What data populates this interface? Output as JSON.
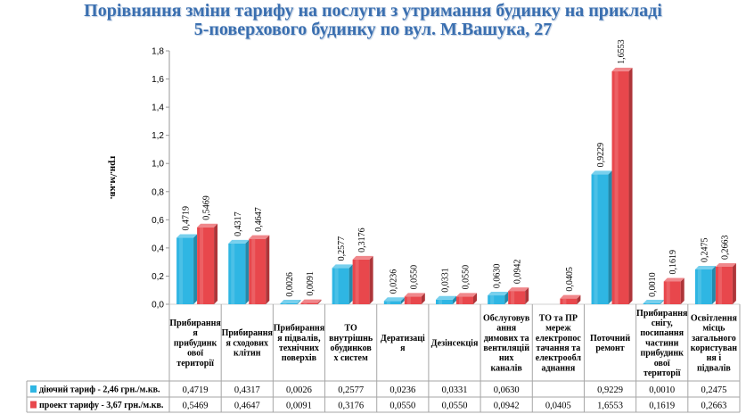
{
  "title": {
    "line1": "Порівняння зміни тарифу на послуги з утримання будинку на прикладі",
    "line2": "5-поверхового будинку по вул. М.Вашука, 27"
  },
  "chart_data": {
    "type": "bar",
    "title": "Порівняння зміни тарифу на послуги з утримання будинку на прикладі 5-поверхового будинку по вул. М.Вашука, 27",
    "ylabel": "грн./м.кв.",
    "xlabel": "",
    "ylim": [
      0,
      1.8
    ],
    "ytick_labels": [
      "0,0",
      "0,2",
      "0,4",
      "0,6",
      "0,8",
      "1,0",
      "1,2",
      "1,4",
      "1,6",
      "1,8"
    ],
    "categories": [
      [
        "Прибирання",
        "я",
        "прибудинк",
        "ової",
        "території"
      ],
      [
        "Прибирання",
        "я сходових",
        "клітин"
      ],
      [
        "Прибирання",
        "я підвалів,",
        "технічних",
        "поверхів"
      ],
      [
        "ТО",
        "внутрішнь",
        "обудинков",
        "х систем"
      ],
      [
        "Дератизаці",
        "я"
      ],
      [
        "Дезінсекція"
      ],
      [
        "Обслуговув",
        "ання",
        "димових та",
        "вентиляцій",
        "них",
        "каналів"
      ],
      [
        "ТО та ПР",
        "мереж",
        "електропос",
        "тачання та",
        "електрообл",
        "аднання"
      ],
      [
        "Поточний",
        "ремонт"
      ],
      [
        "Прибирання",
        "снігу,",
        "посипання",
        "частини",
        "прибудинк",
        "ової",
        "території"
      ],
      [
        "Освітлення",
        "місць",
        "загального",
        "користуван",
        "ня і",
        "підвалів"
      ]
    ],
    "series": [
      {
        "name": "діючий тариф - 2,46 грн./м.кв.",
        "color": "#2fb6e3",
        "values": [
          0.4719,
          0.4317,
          0.0026,
          0.2577,
          0.0236,
          0.0331,
          0.063,
          null,
          0.9229,
          0.001,
          0.2475
        ],
        "labels": [
          "0,4719",
          "0,4317",
          "0,0026",
          "0,2577",
          "0,0236",
          "0,0331",
          "0,0630",
          "",
          "0,9229",
          "0,0010",
          "0,2475"
        ]
      },
      {
        "name": "проект тарифу - 3,67 грн./м.кв.",
        "color": "#e8474c",
        "values": [
          0.5469,
          0.4647,
          0.0091,
          0.3176,
          0.055,
          0.055,
          0.0942,
          0.0405,
          1.6553,
          0.1619,
          0.2663
        ],
        "labels": [
          "0,5469",
          "0,4647",
          "0,0091",
          "0,3176",
          "0,0550",
          "0,0550",
          "0,0942",
          "0,0405",
          "1,6553",
          "0,1619",
          "0,2663"
        ]
      }
    ],
    "grid": false,
    "legend": "data table below plot"
  }
}
